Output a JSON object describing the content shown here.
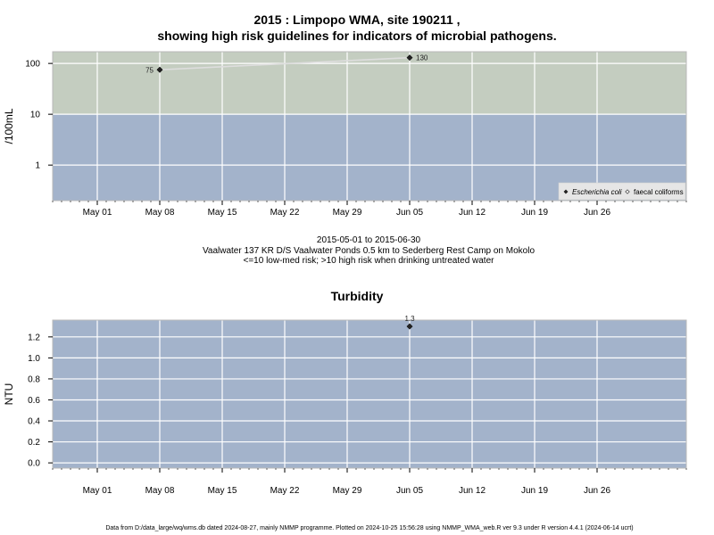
{
  "page": {
    "title_line1": "2015 : Limpopo WMA, site 190211 ,",
    "title_line2": "showing high risk guidelines for indicators of microbial pathogens.",
    "caption_line1": "2015-05-01 to 2015-06-30",
    "caption_line2": "Vaalwater 137 KR D/S Vaalwater Ponds 0.5 km to Sederberg Rest Camp on Mokolo",
    "caption_line3": "<=10 low-med risk; >10 high risk when drinking untreated water",
    "turbidity_title": "Turbidity",
    "footer": "Data from D:/data_large/wq/wms.db dated 2024-08-27, mainly NMMP programme. Plotted on 2024-10-25 15:56:28 using NMMP_WMA_web.R ver 9.3 under R version 4.4.1 (2024-06-14 ucrt)"
  },
  "chart_data": [
    {
      "type": "line",
      "ylabel": "/100mL",
      "yscale": "log",
      "ylim": [
        0.2,
        170
      ],
      "xlim": [
        "2015-04-26",
        "2015-07-06"
      ],
      "x_ticks": [
        "May 01",
        "May 08",
        "May 15",
        "May 22",
        "May 29",
        "Jun 05",
        "Jun 12",
        "Jun 19",
        "Jun 26"
      ],
      "x_tick_dates": [
        "2015-05-01",
        "2015-05-08",
        "2015-05-15",
        "2015-05-22",
        "2015-05-29",
        "2015-06-05",
        "2015-06-12",
        "2015-06-19",
        "2015-06-26"
      ],
      "y_ticks": [
        1,
        10,
        100
      ],
      "y_tick_labels": [
        "1",
        "10",
        "100"
      ],
      "threshold": 10,
      "grid": true,
      "legend_position": "bottom-right",
      "colors": {
        "high_risk": "#c4cdc0",
        "low_risk": "#a3b3cb",
        "line": "#dedede",
        "point": "#222222"
      },
      "series": [
        {
          "name": "Escherichia coli",
          "marker": "filled-diamond",
          "x": [
            "2015-05-08",
            "2015-06-05"
          ],
          "y": [
            75,
            130
          ],
          "labels": [
            "75",
            "130"
          ]
        },
        {
          "name": "faecal coliforms",
          "marker": "open-diamond",
          "x": [],
          "y": [],
          "labels": []
        }
      ]
    },
    {
      "type": "scatter",
      "ylabel": "NTU",
      "ylim": [
        -0.05,
        1.36
      ],
      "xlim": [
        "2015-04-26",
        "2015-07-06"
      ],
      "x_ticks": [
        "May 01",
        "May 08",
        "May 15",
        "May 22",
        "May 29",
        "Jun 05",
        "Jun 12",
        "Jun 19",
        "Jun 26"
      ],
      "x_tick_dates": [
        "2015-05-01",
        "2015-05-08",
        "2015-05-15",
        "2015-05-22",
        "2015-05-29",
        "2015-06-05",
        "2015-06-12",
        "2015-06-19",
        "2015-06-26"
      ],
      "y_ticks": [
        0.0,
        0.2,
        0.4,
        0.6,
        0.8,
        1.0,
        1.2
      ],
      "y_tick_labels": [
        "0.0",
        "0.2",
        "0.4",
        "0.6",
        "0.8",
        "1.0",
        "1.2"
      ],
      "grid": true,
      "colors": {
        "background": "#a3b3cb",
        "point": "#222222"
      },
      "series": [
        {
          "name": "",
          "x": [
            "2015-06-05"
          ],
          "y": [
            1.3
          ],
          "labels": [
            "1.3"
          ]
        }
      ]
    }
  ]
}
